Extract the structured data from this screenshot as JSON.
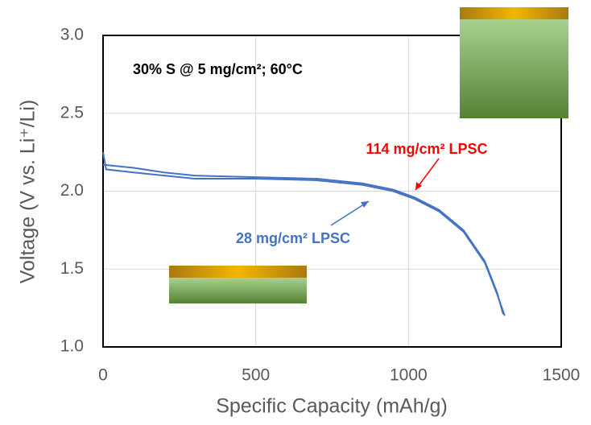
{
  "chart_data": {
    "type": "line",
    "annotation": "30% S @ 5 mg/cm²; 60°C",
    "x_label": "Specific Capacity (mAh/g)",
    "y_label": "Voltage (V vs. Li⁺/Li)",
    "xlim": [
      0,
      1500
    ],
    "xticks": [
      0,
      500,
      1000,
      1500
    ],
    "ylim": [
      1,
      3
    ],
    "yticks": [
      {
        "value": 1,
        "label": "1.0"
      },
      {
        "value": 1.5,
        "label": "1.5"
      },
      {
        "value": 2,
        "label": "2.0"
      },
      {
        "value": 2.5,
        "label": "2.5"
      },
      {
        "value": 3,
        "label": "3.0"
      }
    ],
    "grid": true,
    "series": [
      {
        "name": "114 mg/cm² LPSC",
        "color": "#4472c4",
        "label_color": "#ff0000",
        "x": [
          0,
          100,
          200,
          300,
          500,
          700,
          850,
          950,
          1020,
          1100,
          1180,
          1250,
          1290,
          1310
        ],
        "values": [
          2.17,
          2.15,
          2.12,
          2.1,
          2.09,
          2.08,
          2.05,
          2.01,
          1.96,
          1.88,
          1.75,
          1.55,
          1.35,
          1.21
        ]
      },
      {
        "name": "28 mg/cm² LPSC",
        "color": "#4472c4",
        "label_color": "#4472c4",
        "x": [
          0,
          10,
          100,
          200,
          300,
          500,
          700,
          850,
          950,
          1020,
          1100,
          1180,
          1250,
          1290,
          1315
        ],
        "values": [
          2.25,
          2.14,
          2.12,
          2.1,
          2.08,
          2.08,
          2.07,
          2.04,
          2.0,
          1.95,
          1.87,
          1.74,
          1.54,
          1.34,
          1.2
        ]
      }
    ]
  }
}
